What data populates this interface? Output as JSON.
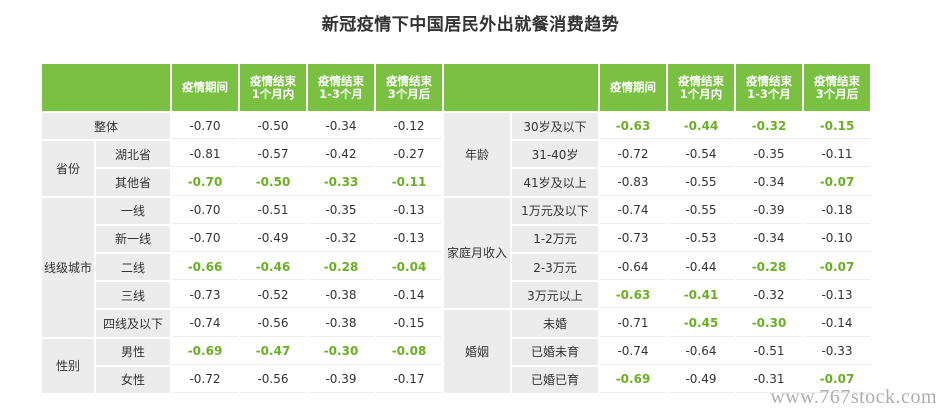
{
  "title": "新冠疫情下中国居民外出就餐消费趋势",
  "headers": [
    "疫情期间",
    "疫情结束\n1个月内",
    "疫情结束\n1-3个月",
    "疫情结束\n3个月后"
  ],
  "left": {
    "rows": [
      {
        "group": "",
        "label": "整体",
        "values": [
          "-0.70",
          "-0.50",
          "-0.34",
          "-0.12"
        ],
        "highlight": false
      },
      {
        "group": "省份",
        "label": "湖北省",
        "values": [
          "-0.81",
          "-0.57",
          "-0.42",
          "-0.27"
        ],
        "highlight": false
      },
      {
        "group": "省份",
        "label": "其他省",
        "values": [
          "-0.70",
          "-0.50",
          "-0.33",
          "-0.11"
        ],
        "highlight": true
      },
      {
        "group": "线级城市",
        "label": "一线",
        "values": [
          "-0.70",
          "-0.51",
          "-0.35",
          "-0.13"
        ],
        "highlight": false
      },
      {
        "group": "线级城市",
        "label": "新一线",
        "values": [
          "-0.70",
          "-0.49",
          "-0.32",
          "-0.13"
        ],
        "highlight": false
      },
      {
        "group": "线级城市",
        "label": "二线",
        "values": [
          "-0.66",
          "-0.46",
          "-0.28",
          "-0.04"
        ],
        "highlight": true
      },
      {
        "group": "线级城市",
        "label": "三线",
        "values": [
          "-0.73",
          "-0.52",
          "-0.38",
          "-0.14"
        ],
        "highlight": false
      },
      {
        "group": "线级城市",
        "label": "四线及以下",
        "values": [
          "-0.74",
          "-0.56",
          "-0.38",
          "-0.15"
        ],
        "highlight": false
      },
      {
        "group": "性别",
        "label": "男性",
        "values": [
          "-0.69",
          "-0.47",
          "-0.30",
          "-0.08"
        ],
        "highlight": true
      },
      {
        "group": "性别",
        "label": "女性",
        "values": [
          "-0.72",
          "-0.56",
          "-0.39",
          "-0.17"
        ],
        "highlight": false
      }
    ],
    "groups": {
      "province": "省份",
      "city": "线级城市",
      "gender": "性别"
    }
  },
  "right": {
    "rows": [
      {
        "label": "30岁及以下",
        "values": [
          "-0.63",
          "-0.44",
          "-0.32",
          "-0.15"
        ],
        "highlight": [
          true,
          true,
          true,
          true
        ]
      },
      {
        "label": "31-40岁",
        "values": [
          "-0.72",
          "-0.54",
          "-0.35",
          "-0.11"
        ],
        "highlight": [
          false,
          false,
          false,
          false
        ]
      },
      {
        "label": "41岁及以上",
        "values": [
          "-0.83",
          "-0.55",
          "-0.34",
          "-0.07"
        ],
        "highlight": [
          false,
          false,
          false,
          true
        ]
      },
      {
        "label": "1万元及以下",
        "values": [
          "-0.74",
          "-0.55",
          "-0.39",
          "-0.18"
        ],
        "highlight": [
          false,
          false,
          false,
          false
        ]
      },
      {
        "label": "1-2万元",
        "values": [
          "-0.73",
          "-0.53",
          "-0.34",
          "-0.10"
        ],
        "highlight": [
          false,
          false,
          false,
          false
        ]
      },
      {
        "label": "2-3万元",
        "values": [
          "-0.64",
          "-0.44",
          "-0.28",
          "-0.07"
        ],
        "highlight": [
          false,
          false,
          true,
          true
        ]
      },
      {
        "label": "3万元以上",
        "values": [
          "-0.63",
          "-0.41",
          "-0.32",
          "-0.13"
        ],
        "highlight": [
          true,
          true,
          false,
          false
        ]
      },
      {
        "label": "未婚",
        "values": [
          "-0.71",
          "-0.45",
          "-0.30",
          "-0.14"
        ],
        "highlight": [
          false,
          true,
          true,
          false
        ]
      },
      {
        "label": "已婚未育",
        "values": [
          "-0.74",
          "-0.64",
          "-0.51",
          "-0.33"
        ],
        "highlight": [
          false,
          false,
          false,
          false
        ]
      },
      {
        "label": "已婚已育",
        "values": [
          "-0.69",
          "-0.49",
          "-0.31",
          "-0.07"
        ],
        "highlight": [
          true,
          false,
          false,
          true
        ]
      }
    ],
    "groups": {
      "age": "年龄",
      "income": "家庭月收入",
      "marriage": "婚姻"
    }
  },
  "colors": {
    "header_green": "#7ac143",
    "highlight_green": "#6ab023",
    "label_gray": "#ececec"
  },
  "watermark": "www.767stock.com"
}
